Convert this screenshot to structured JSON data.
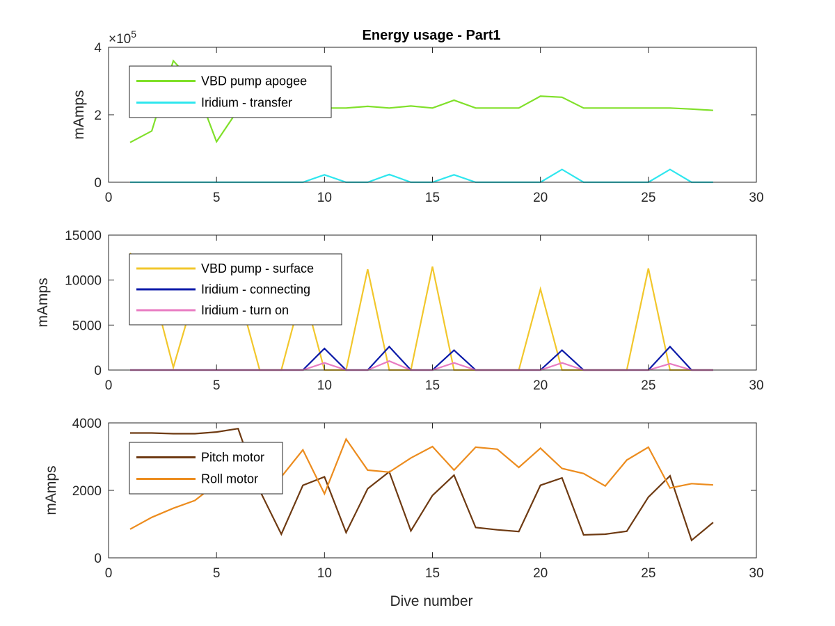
{
  "figure": {
    "title": "Energy usage - Part1",
    "xlabel": "Dive number"
  },
  "chart_data": [
    {
      "type": "line",
      "title": "Energy usage - Part1",
      "xlabel": "",
      "ylabel": "mAmps",
      "xlim": [
        0,
        30
      ],
      "ylim": [
        0,
        400000
      ],
      "xticks": [
        0,
        5,
        10,
        15,
        20,
        25,
        30
      ],
      "yticks": [
        0,
        2,
        4
      ],
      "ytick_scale": 100000,
      "exponent_label": "×10",
      "exponent_power": "5",
      "legend_position": "top-left",
      "grid": false,
      "series": [
        {
          "name": "VBD pump apogee",
          "color": "#80e02a",
          "x": [
            1,
            2,
            3,
            4,
            5,
            6,
            7,
            8,
            9,
            10,
            11,
            12,
            13,
            14,
            15,
            16,
            17,
            18,
            19,
            20,
            21,
            22,
            23,
            24,
            25,
            26,
            27,
            28
          ],
          "y": [
            118000,
            152000,
            360000,
            290000,
            120000,
            215000,
            220000,
            222000,
            222000,
            220000,
            220000,
            225000,
            220000,
            226000,
            220000,
            243000,
            220000,
            220000,
            220000,
            255000,
            252000,
            220000,
            220000,
            220000,
            220000,
            220000,
            217000,
            213000
          ]
        },
        {
          "name": "Iridium - transfer",
          "color": "#2ee6ee",
          "x": [
            1,
            2,
            3,
            4,
            5,
            6,
            7,
            8,
            9,
            10,
            11,
            12,
            13,
            14,
            15,
            16,
            17,
            18,
            19,
            20,
            21,
            22,
            23,
            24,
            25,
            26,
            27,
            28
          ],
          "y": [
            0,
            0,
            0,
            0,
            0,
            0,
            0,
            0,
            0,
            22000,
            0,
            0,
            23000,
            0,
            0,
            22000,
            0,
            0,
            0,
            0,
            38000,
            0,
            0,
            0,
            0,
            38000,
            0,
            0
          ]
        }
      ]
    },
    {
      "type": "line",
      "xlabel": "",
      "ylabel": "mAmps",
      "xlim": [
        0,
        30
      ],
      "ylim": [
        0,
        15000
      ],
      "xticks": [
        0,
        5,
        10,
        15,
        20,
        25,
        30
      ],
      "yticks": [
        0,
        5000,
        10000,
        15000
      ],
      "legend_position": "top-left",
      "grid": false,
      "series": [
        {
          "name": "VBD pump - surface",
          "color": "#f2c72c",
          "x": [
            1,
            2,
            3,
            4,
            5,
            6,
            7,
            8,
            9,
            10,
            11,
            12,
            13,
            14,
            15,
            16,
            17,
            18,
            19,
            20,
            21,
            22,
            23,
            24,
            25,
            26,
            27,
            28
          ],
          "y": [
            13000,
            9500,
            300,
            8500,
            9000,
            8800,
            0,
            0,
            9000,
            0,
            0,
            11200,
            0,
            0,
            11500,
            0,
            0,
            0,
            0,
            9000,
            0,
            0,
            0,
            0,
            11300,
            0,
            0,
            0
          ]
        },
        {
          "name": "Iridium - connecting",
          "color": "#0b1aa8",
          "x": [
            1,
            2,
            3,
            4,
            5,
            6,
            7,
            8,
            9,
            10,
            11,
            12,
            13,
            14,
            15,
            16,
            17,
            18,
            19,
            20,
            21,
            22,
            23,
            24,
            25,
            26,
            27,
            28
          ],
          "y": [
            0,
            0,
            0,
            0,
            0,
            0,
            0,
            0,
            0,
            2400,
            0,
            0,
            2600,
            0,
            0,
            2200,
            0,
            0,
            0,
            0,
            2200,
            0,
            0,
            0,
            0,
            2600,
            0,
            0
          ]
        },
        {
          "name": "Iridium - turn on",
          "color": "#e87cc2",
          "x": [
            1,
            2,
            3,
            4,
            5,
            6,
            7,
            8,
            9,
            10,
            11,
            12,
            13,
            14,
            15,
            16,
            17,
            18,
            19,
            20,
            21,
            22,
            23,
            24,
            25,
            26,
            27,
            28
          ],
          "y": [
            0,
            0,
            0,
            0,
            0,
            0,
            0,
            0,
            0,
            800,
            0,
            0,
            1000,
            0,
            0,
            800,
            0,
            0,
            0,
            0,
            800,
            0,
            0,
            0,
            0,
            700,
            0,
            0
          ]
        }
      ]
    },
    {
      "type": "line",
      "xlabel": "Dive number",
      "ylabel": "mAmps",
      "xlim": [
        0,
        30
      ],
      "ylim": [
        0,
        4000
      ],
      "xticks": [
        0,
        5,
        10,
        15,
        20,
        25,
        30
      ],
      "yticks": [
        0,
        2000,
        4000
      ],
      "legend_position": "top-left",
      "grid": false,
      "series": [
        {
          "name": "Pitch motor",
          "color": "#6e3a12",
          "x": [
            1,
            2,
            3,
            4,
            5,
            6,
            7,
            8,
            9,
            10,
            11,
            12,
            13,
            14,
            15,
            16,
            17,
            18,
            19,
            20,
            21,
            22,
            23,
            24,
            25,
            26,
            27,
            28
          ],
          "y": [
            3700,
            3700,
            3680,
            3680,
            3730,
            3830,
            2000,
            700,
            2150,
            2400,
            750,
            2050,
            2550,
            800,
            1850,
            2450,
            900,
            830,
            780,
            2150,
            2370,
            680,
            700,
            790,
            1800,
            2430,
            520,
            1050
          ]
        },
        {
          "name": "Roll motor",
          "color": "#ec8c1e",
          "x": [
            1,
            2,
            3,
            4,
            5,
            6,
            7,
            8,
            9,
            10,
            11,
            12,
            13,
            14,
            15,
            16,
            17,
            18,
            19,
            20,
            21,
            22,
            23,
            24,
            25,
            26,
            27,
            28
          ],
          "y": [
            850,
            1200,
            1470,
            1700,
            2200,
            2700,
            2300,
            2400,
            3200,
            1900,
            3520,
            2600,
            2540,
            2960,
            3300,
            2600,
            3280,
            3220,
            2680,
            3250,
            2650,
            2500,
            2130,
            2900,
            3280,
            2070,
            2200,
            2160
          ]
        }
      ]
    }
  ]
}
